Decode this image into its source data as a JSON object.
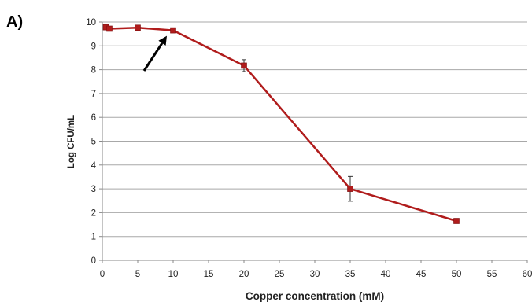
{
  "chart_data": {
    "type": "line",
    "panel_label": "A)",
    "title": "",
    "xlabel": "Copper concentration (mM)",
    "ylabel": "Log CFU/mL",
    "xlim": [
      0,
      60
    ],
    "ylim": [
      0,
      10
    ],
    "x_ticks": [
      0,
      5,
      10,
      15,
      20,
      25,
      30,
      35,
      40,
      45,
      50,
      55,
      60
    ],
    "y_ticks": [
      0,
      1,
      2,
      3,
      4,
      5,
      6,
      7,
      8,
      9,
      10
    ],
    "grid": "horizontal",
    "series": [
      {
        "color": "#b01c1c",
        "marker": "square",
        "points": [
          {
            "x": 0.5,
            "y": 9.78,
            "err": 0.05
          },
          {
            "x": 1,
            "y": 9.72,
            "err": 0.05
          },
          {
            "x": 5,
            "y": 9.76,
            "err": 0.05
          },
          {
            "x": 10,
            "y": 9.65,
            "err": 0.05
          },
          {
            "x": 20,
            "y": 8.17,
            "err": 0.25
          },
          {
            "x": 35,
            "y": 3.0,
            "err": 0.52
          },
          {
            "x": 50,
            "y": 1.65,
            "err": 0.05
          }
        ]
      }
    ],
    "annotation": {
      "type": "arrow",
      "points_to_x": 10,
      "points_to_y": 9.65
    }
  }
}
